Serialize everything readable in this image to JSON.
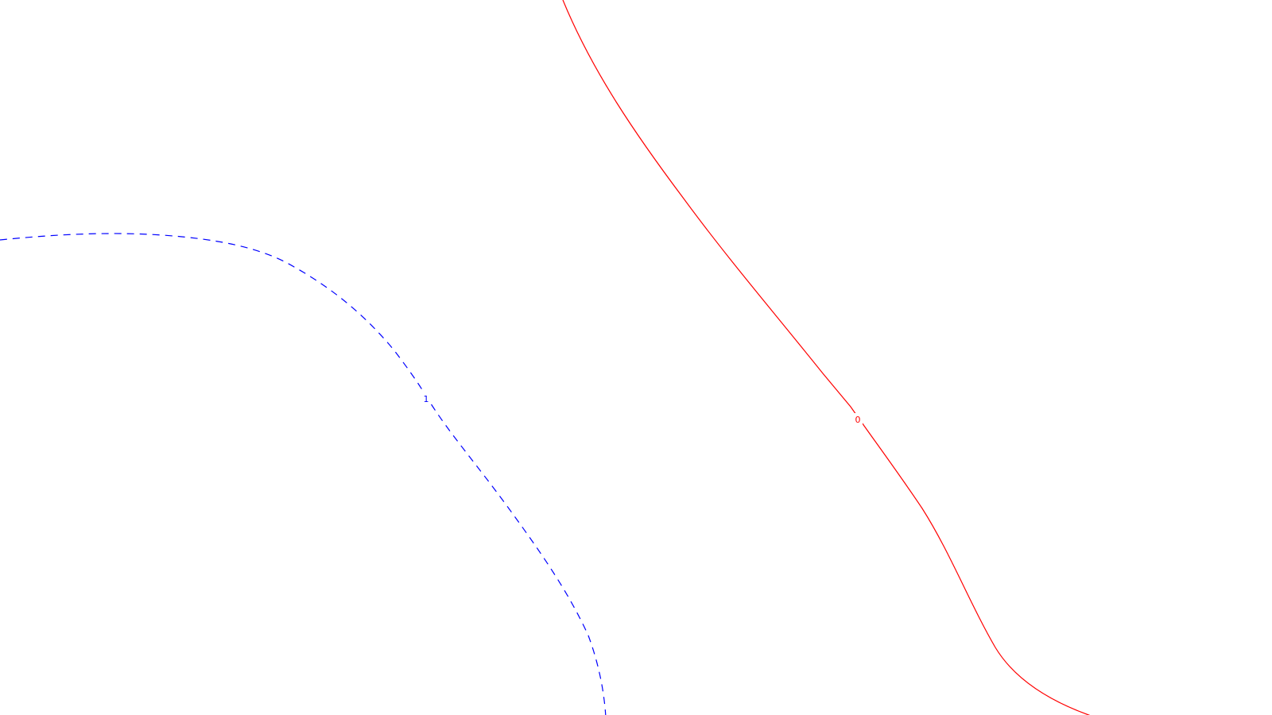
{
  "contours": [
    {
      "id": "contour-0",
      "label": "0",
      "color": "#ff0000",
      "style": "solid"
    },
    {
      "id": "contour-1",
      "label": "1",
      "color": "#0000ff",
      "style": "dashed"
    }
  ]
}
